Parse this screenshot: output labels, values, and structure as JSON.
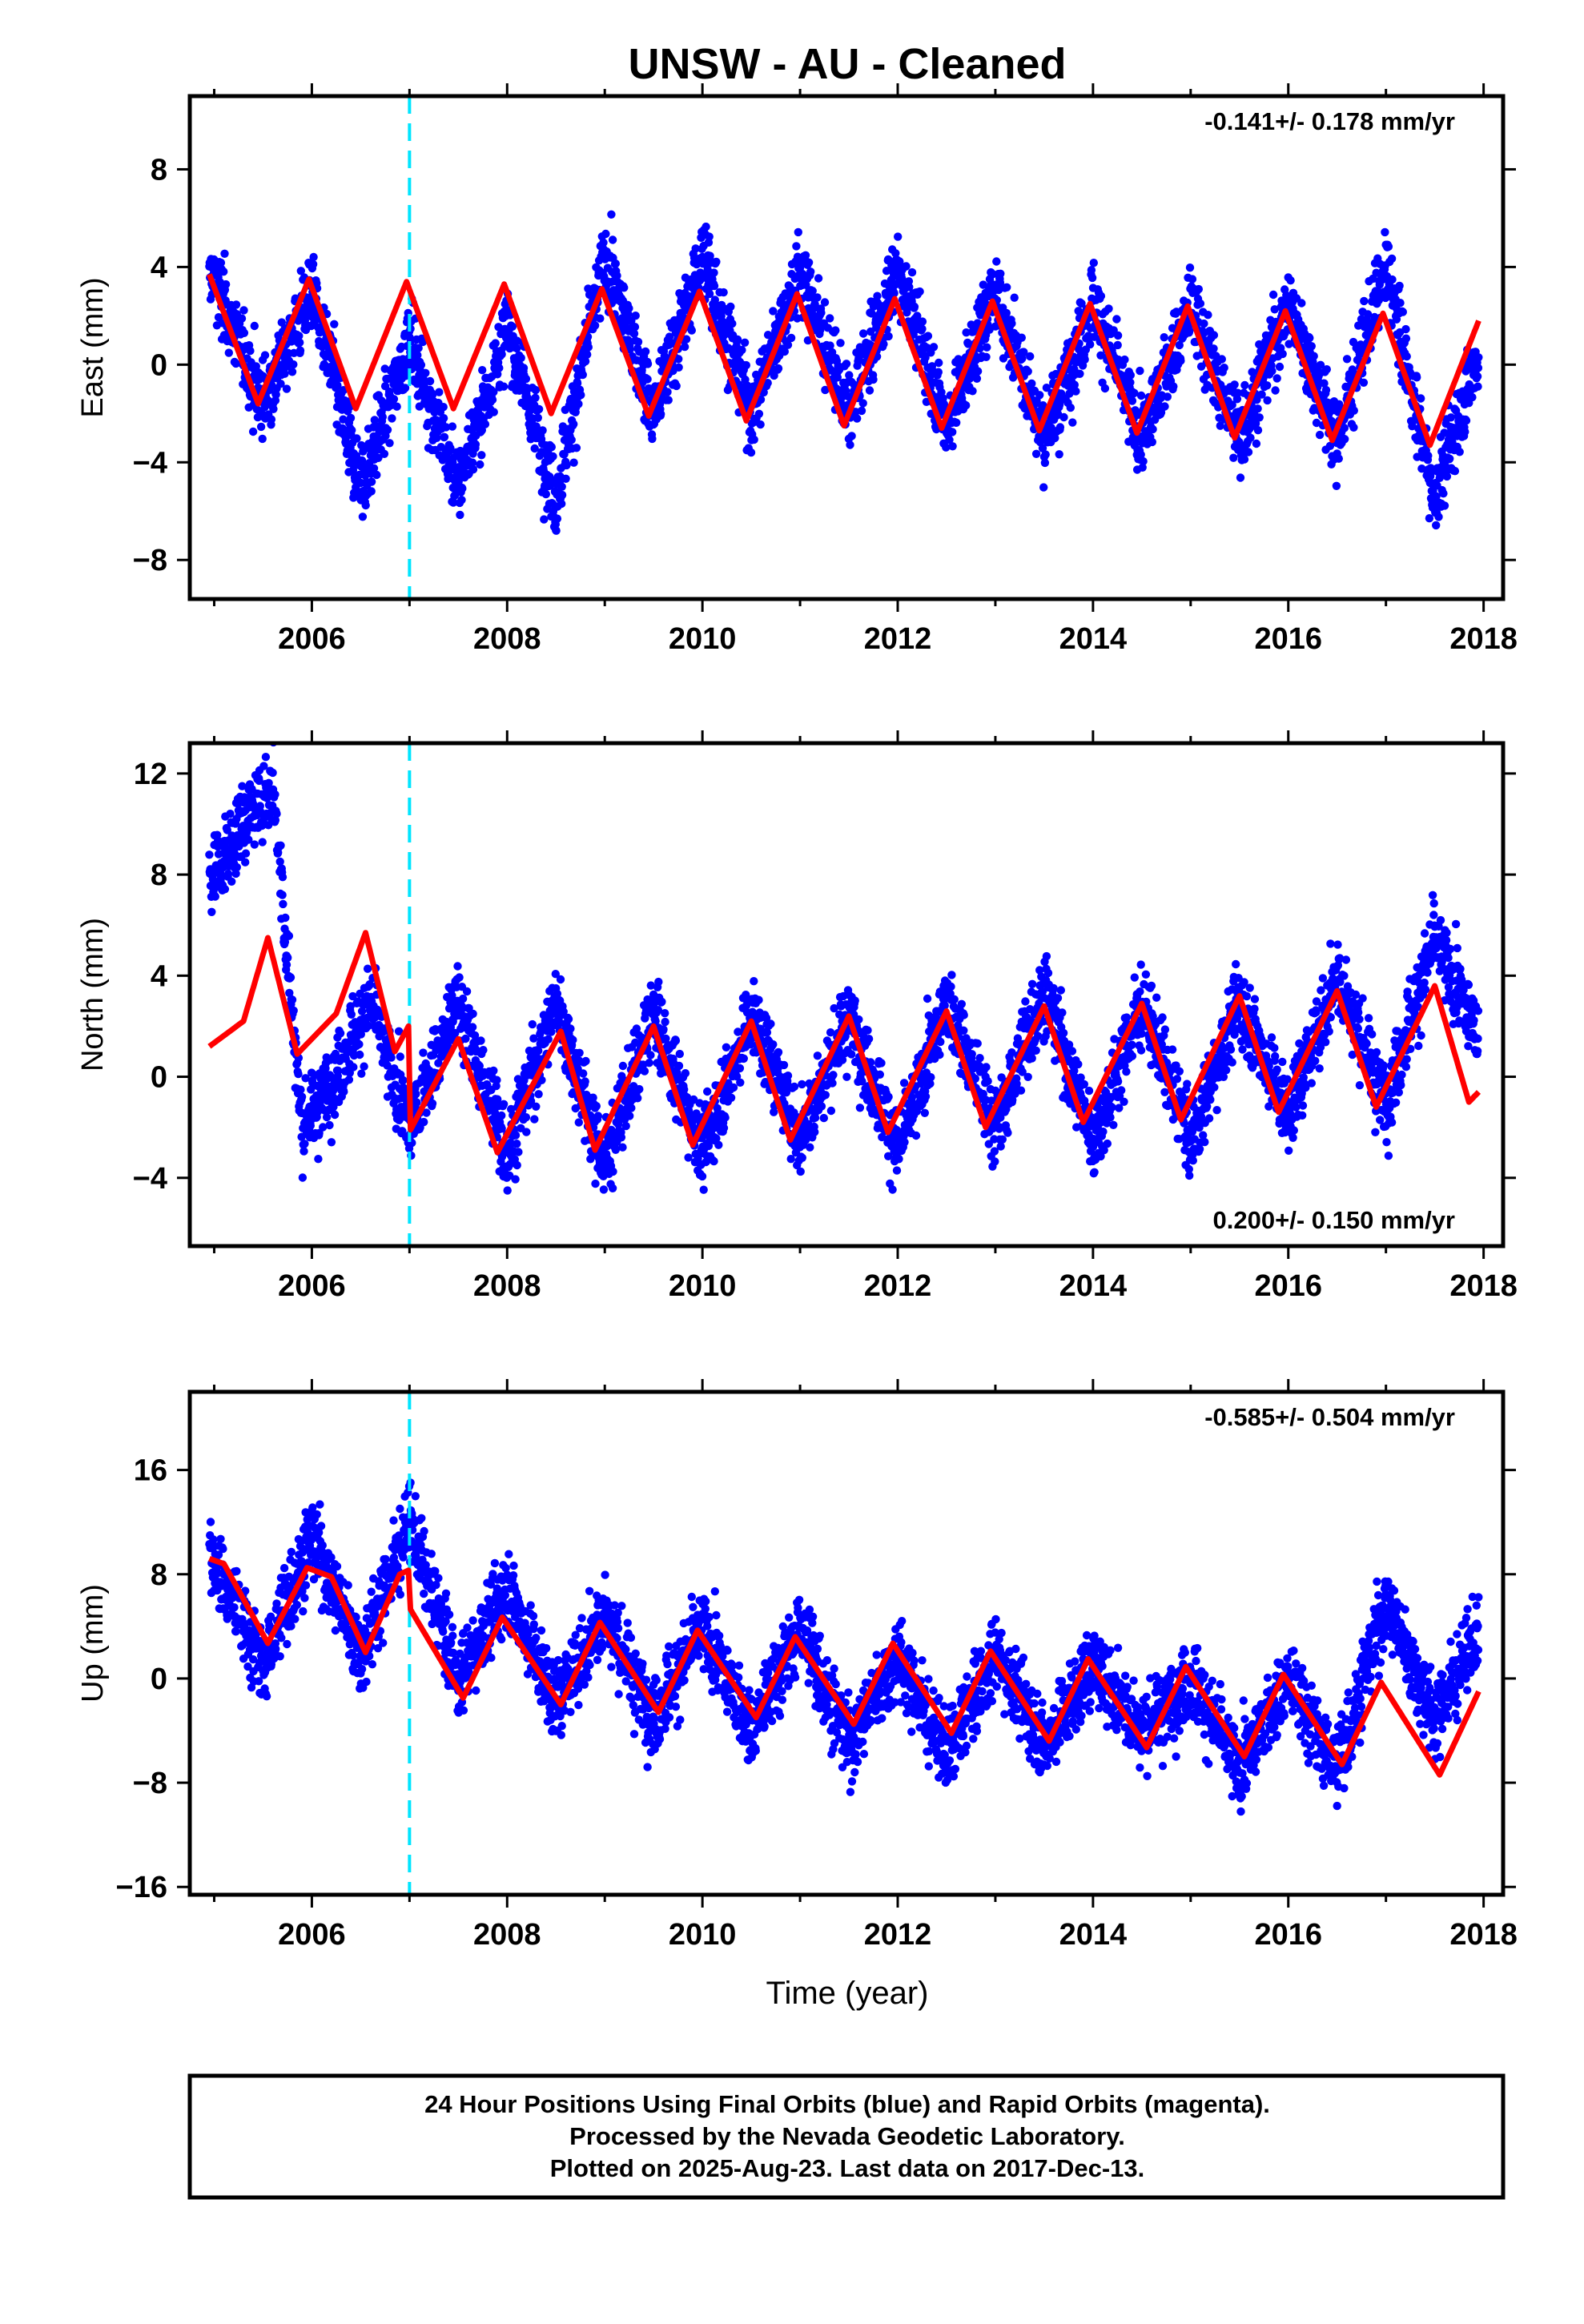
{
  "title": "UNSW  - AU - Cleaned",
  "x_label": "Time (year)",
  "footer": {
    "line1": "24 Hour Positions Using Final Orbits (blue) and Rapid Orbits (magenta).",
    "line2": "Processed by the Nevada Geodetic Laboratory.",
    "line3": "Plotted on 2025-Aug-23. Last data on 2017-Dec-13."
  },
  "colors": {
    "points": "#0000ff",
    "model": "#ff0000",
    "event_line": "#00e5ff"
  },
  "chart_data": [
    {
      "type": "scatter",
      "ylabel": "East (mm)",
      "rate_label": "-0.141+/- 0.178 mm/yr",
      "rate_position": "top-right",
      "xlim": [
        2004.75,
        2018.2
      ],
      "ylim": [
        -9.6,
        11.0
      ],
      "x_ticks": [
        2006,
        2008,
        2010,
        2012,
        2014,
        2016,
        2018
      ],
      "y_ticks": [
        -8,
        -4,
        0,
        4,
        8
      ],
      "event_line_x": 2007.0,
      "x_start": 2004.95,
      "x_end": 2017.95,
      "points_sample": [
        {
          "x": 2005.0,
          "y": 3.5
        },
        {
          "x": 2005.5,
          "y": -1.5
        },
        {
          "x": 2006.0,
          "y": 3.0
        },
        {
          "x": 2006.5,
          "y": -5.0
        },
        {
          "x": 2007.0,
          "y": 1.0
        },
        {
          "x": 2007.5,
          "y": -5.0
        },
        {
          "x": 2008.0,
          "y": 1.5
        },
        {
          "x": 2008.5,
          "y": -5.5
        },
        {
          "x": 2009.0,
          "y": 4.5
        },
        {
          "x": 2009.5,
          "y": -2.0
        },
        {
          "x": 2010.0,
          "y": 4.5
        },
        {
          "x": 2010.5,
          "y": -2.0
        },
        {
          "x": 2011.0,
          "y": 4.0
        },
        {
          "x": 2011.5,
          "y": -2.0
        },
        {
          "x": 2012.0,
          "y": 4.0
        },
        {
          "x": 2012.5,
          "y": -2.5
        },
        {
          "x": 2013.0,
          "y": 3.0
        },
        {
          "x": 2013.5,
          "y": -3.0
        },
        {
          "x": 2014.0,
          "y": 2.5
        },
        {
          "x": 2014.5,
          "y": -3.0
        },
        {
          "x": 2015.0,
          "y": 2.5
        },
        {
          "x": 2015.5,
          "y": -3.0
        },
        {
          "x": 2016.0,
          "y": 2.5
        },
        {
          "x": 2016.5,
          "y": -3.0
        },
        {
          "x": 2017.0,
          "y": 4.0
        },
        {
          "x": 2017.5,
          "y": -5.5
        },
        {
          "x": 2017.9,
          "y": 0.0
        }
      ],
      "model_curve": [
        {
          "x": 2004.95,
          "y": 3.7
        },
        {
          "x": 2005.45,
          "y": -1.6
        },
        {
          "x": 2005.97,
          "y": 3.5
        },
        {
          "x": 2006.45,
          "y": -1.8
        },
        {
          "x": 2006.97,
          "y": 3.4
        },
        {
          "x": 2007.45,
          "y": -1.8
        },
        {
          "x": 2007.97,
          "y": 3.3
        },
        {
          "x": 2008.45,
          "y": -2.0
        },
        {
          "x": 2008.97,
          "y": 3.1
        },
        {
          "x": 2009.45,
          "y": -2.1
        },
        {
          "x": 2009.97,
          "y": 3.0
        },
        {
          "x": 2010.45,
          "y": -2.3
        },
        {
          "x": 2010.97,
          "y": 2.9
        },
        {
          "x": 2011.45,
          "y": -2.5
        },
        {
          "x": 2011.97,
          "y": 2.7
        },
        {
          "x": 2012.45,
          "y": -2.6
        },
        {
          "x": 2012.97,
          "y": 2.6
        },
        {
          "x": 2013.45,
          "y": -2.7
        },
        {
          "x": 2013.97,
          "y": 2.5
        },
        {
          "x": 2014.45,
          "y": -2.8
        },
        {
          "x": 2014.97,
          "y": 2.4
        },
        {
          "x": 2015.45,
          "y": -3.0
        },
        {
          "x": 2015.97,
          "y": 2.2
        },
        {
          "x": 2016.45,
          "y": -3.1
        },
        {
          "x": 2016.97,
          "y": 2.1
        },
        {
          "x": 2017.45,
          "y": -3.3
        },
        {
          "x": 2017.95,
          "y": 1.8
        }
      ]
    },
    {
      "type": "scatter",
      "ylabel": "North (mm)",
      "rate_label": "0.200+/- 0.150 mm/yr",
      "rate_position": "bottom-right",
      "xlim": [
        2004.75,
        2018.2
      ],
      "ylim": [
        -6.7,
        13.2
      ],
      "x_ticks": [
        2006,
        2008,
        2010,
        2012,
        2014,
        2016,
        2018
      ],
      "y_ticks": [
        -4,
        0,
        4,
        8,
        12
      ],
      "event_line_x": 2007.0,
      "x_start": 2004.95,
      "x_end": 2017.95,
      "points_sample": [
        {
          "x": 2005.0,
          "y": 8.0
        },
        {
          "x": 2005.3,
          "y": 10.0
        },
        {
          "x": 2005.6,
          "y": 11.5
        },
        {
          "x": 2005.9,
          "y": -2.0
        },
        {
          "x": 2006.3,
          "y": 0.5
        },
        {
          "x": 2006.6,
          "y": 3.0
        },
        {
          "x": 2007.0,
          "y": -2.0
        },
        {
          "x": 2007.5,
          "y": 3.0
        },
        {
          "x": 2008.0,
          "y": -3.0
        },
        {
          "x": 2008.5,
          "y": 3.0
        },
        {
          "x": 2009.0,
          "y": -3.5
        },
        {
          "x": 2009.5,
          "y": 2.5
        },
        {
          "x": 2010.0,
          "y": -3.0
        },
        {
          "x": 2010.5,
          "y": 2.5
        },
        {
          "x": 2011.0,
          "y": -2.5
        },
        {
          "x": 2011.5,
          "y": 2.5
        },
        {
          "x": 2012.0,
          "y": -3.0
        },
        {
          "x": 2012.5,
          "y": 3.0
        },
        {
          "x": 2013.0,
          "y": -2.0
        },
        {
          "x": 2013.5,
          "y": 3.5
        },
        {
          "x": 2014.0,
          "y": -2.5
        },
        {
          "x": 2014.5,
          "y": 3.0
        },
        {
          "x": 2015.0,
          "y": -2.5
        },
        {
          "x": 2015.5,
          "y": 3.0
        },
        {
          "x": 2016.0,
          "y": -1.5
        },
        {
          "x": 2016.5,
          "y": 4.0
        },
        {
          "x": 2017.0,
          "y": -1.0
        },
        {
          "x": 2017.5,
          "y": 5.5
        },
        {
          "x": 2017.9,
          "y": 2.0
        }
      ],
      "model_curve": [
        {
          "x": 2004.95,
          "y": 1.2
        },
        {
          "x": 2005.3,
          "y": 2.2
        },
        {
          "x": 2005.55,
          "y": 5.5
        },
        {
          "x": 2005.85,
          "y": 0.9
        },
        {
          "x": 2006.25,
          "y": 2.5
        },
        {
          "x": 2006.55,
          "y": 5.7
        },
        {
          "x": 2006.85,
          "y": 1.0
        },
        {
          "x": 2006.99,
          "y": 2.0
        },
        {
          "x": 2007.01,
          "y": -2.1
        },
        {
          "x": 2007.5,
          "y": 1.5
        },
        {
          "x": 2007.9,
          "y": -3.0
        },
        {
          "x": 2008.55,
          "y": 1.8
        },
        {
          "x": 2008.9,
          "y": -2.9
        },
        {
          "x": 2009.5,
          "y": 2.0
        },
        {
          "x": 2009.9,
          "y": -2.7
        },
        {
          "x": 2010.5,
          "y": 2.2
        },
        {
          "x": 2010.9,
          "y": -2.5
        },
        {
          "x": 2011.5,
          "y": 2.4
        },
        {
          "x": 2011.9,
          "y": -2.2
        },
        {
          "x": 2012.5,
          "y": 2.6
        },
        {
          "x": 2012.9,
          "y": -2.0
        },
        {
          "x": 2013.5,
          "y": 2.8
        },
        {
          "x": 2013.9,
          "y": -1.8
        },
        {
          "x": 2014.5,
          "y": 2.9
        },
        {
          "x": 2014.9,
          "y": -1.7
        },
        {
          "x": 2015.5,
          "y": 3.2
        },
        {
          "x": 2015.9,
          "y": -1.4
        },
        {
          "x": 2016.5,
          "y": 3.4
        },
        {
          "x": 2016.9,
          "y": -1.2
        },
        {
          "x": 2017.5,
          "y": 3.6
        },
        {
          "x": 2017.85,
          "y": -1.0
        },
        {
          "x": 2017.95,
          "y": -0.6
        }
      ]
    },
    {
      "type": "scatter",
      "ylabel": "Up (mm)",
      "rate_label": "-0.585+/- 0.504 mm/yr",
      "rate_position": "top-right",
      "xlim": [
        2004.75,
        2018.2
      ],
      "ylim": [
        -16.6,
        22.0
      ],
      "x_ticks": [
        2006,
        2008,
        2010,
        2012,
        2014,
        2016,
        2018
      ],
      "y_ticks": [
        -16,
        -8,
        0,
        8,
        16
      ],
      "event_line_x": 2007.0,
      "x_start": 2004.95,
      "x_end": 2017.95,
      "points_sample": [
        {
          "x": 2005.0,
          "y": 9.0
        },
        {
          "x": 2005.5,
          "y": 1.0
        },
        {
          "x": 2006.0,
          "y": 11.0
        },
        {
          "x": 2006.5,
          "y": 2.0
        },
        {
          "x": 2007.0,
          "y": 12.0
        },
        {
          "x": 2007.5,
          "y": 0.0
        },
        {
          "x": 2008.0,
          "y": 7.0
        },
        {
          "x": 2008.5,
          "y": -2.0
        },
        {
          "x": 2009.0,
          "y": 5.0
        },
        {
          "x": 2009.5,
          "y": -3.0
        },
        {
          "x": 2010.0,
          "y": 4.0
        },
        {
          "x": 2010.5,
          "y": -4.0
        },
        {
          "x": 2011.0,
          "y": 4.0
        },
        {
          "x": 2011.5,
          "y": -5.0
        },
        {
          "x": 2012.0,
          "y": 2.0
        },
        {
          "x": 2012.5,
          "y": -6.0
        },
        {
          "x": 2013.0,
          "y": 2.0
        },
        {
          "x": 2013.5,
          "y": -5.0
        },
        {
          "x": 2014.0,
          "y": 1.0
        },
        {
          "x": 2014.5,
          "y": -4.0
        },
        {
          "x": 2015.0,
          "y": 0.0
        },
        {
          "x": 2015.5,
          "y": -7.0
        },
        {
          "x": 2016.0,
          "y": 0.0
        },
        {
          "x": 2016.5,
          "y": -7.0
        },
        {
          "x": 2017.0,
          "y": 6.0
        },
        {
          "x": 2017.5,
          "y": -3.0
        },
        {
          "x": 2017.9,
          "y": 3.0
        }
      ],
      "model_curve": [
        {
          "x": 2004.95,
          "y": 9.2
        },
        {
          "x": 2005.1,
          "y": 8.8
        },
        {
          "x": 2005.55,
          "y": 2.7
        },
        {
          "x": 2005.95,
          "y": 8.5
        },
        {
          "x": 2006.2,
          "y": 7.8
        },
        {
          "x": 2006.55,
          "y": 2.0
        },
        {
          "x": 2006.9,
          "y": 8.0
        },
        {
          "x": 2006.99,
          "y": 8.3
        },
        {
          "x": 2007.01,
          "y": 5.3
        },
        {
          "x": 2007.55,
          "y": -1.5
        },
        {
          "x": 2007.95,
          "y": 4.7
        },
        {
          "x": 2008.55,
          "y": -2.0
        },
        {
          "x": 2008.95,
          "y": 4.3
        },
        {
          "x": 2009.55,
          "y": -2.6
        },
        {
          "x": 2009.95,
          "y": 3.7
        },
        {
          "x": 2010.55,
          "y": -3.0
        },
        {
          "x": 2010.95,
          "y": 3.2
        },
        {
          "x": 2011.55,
          "y": -3.5
        },
        {
          "x": 2011.95,
          "y": 2.7
        },
        {
          "x": 2012.55,
          "y": -4.2
        },
        {
          "x": 2012.95,
          "y": 2.1
        },
        {
          "x": 2013.55,
          "y": -4.8
        },
        {
          "x": 2013.95,
          "y": 1.5
        },
        {
          "x": 2014.55,
          "y": -5.3
        },
        {
          "x": 2014.95,
          "y": 0.9
        },
        {
          "x": 2015.55,
          "y": -6.0
        },
        {
          "x": 2015.95,
          "y": 0.3
        },
        {
          "x": 2016.55,
          "y": -6.6
        },
        {
          "x": 2016.95,
          "y": -0.3
        },
        {
          "x": 2017.55,
          "y": -7.4
        },
        {
          "x": 2017.95,
          "y": -1.0
        }
      ]
    }
  ]
}
